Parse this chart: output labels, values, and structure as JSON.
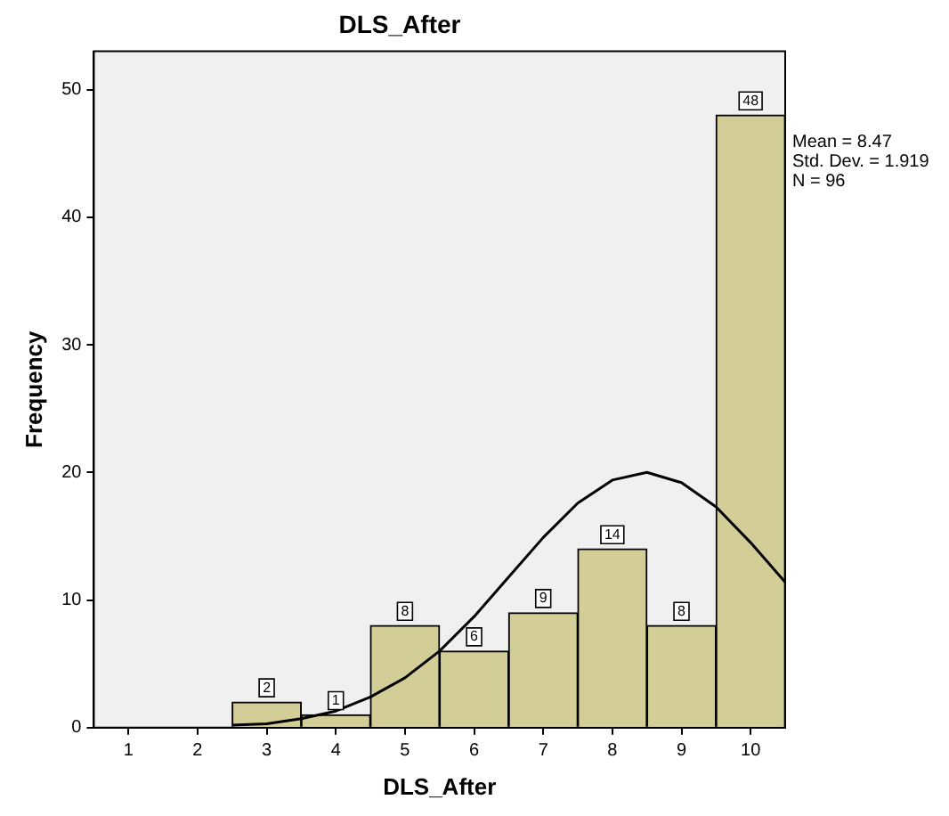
{
  "chart_data": {
    "type": "histogram",
    "title": "DLS_After",
    "xlabel": "DLS_After",
    "ylabel": "Frequency",
    "bins": [
      0.5,
      1.5,
      2.5,
      3.5,
      4.5,
      5.5,
      6.5,
      7.5,
      8.5,
      9.5,
      10.5
    ],
    "xlim": [
      0.5,
      10.5
    ],
    "xticks": [
      1,
      2,
      3,
      4,
      5,
      6,
      7,
      8,
      9,
      10
    ],
    "ylim": [
      0,
      53
    ],
    "yticks": [
      0,
      10,
      20,
      30,
      40,
      50
    ],
    "grid": false,
    "legend": false,
    "annotations": [
      "Mean = 8.47",
      "Std. Dev. = 1.919",
      "N = 96"
    ],
    "series": [
      {
        "color": "#d3ce97",
        "values": [
          0,
          0,
          2,
          1,
          8,
          6,
          9,
          14,
          8,
          48
        ],
        "value_labels": [
          null,
          null,
          "2",
          "1",
          "8",
          "6",
          "9",
          "14",
          "8",
          "48"
        ]
      },
      {
        "type": "line",
        "color": "#000000",
        "marker": "none",
        "x": [
          2.5,
          3,
          3.5,
          4,
          4.5,
          5,
          5.5,
          6,
          6.5,
          7,
          7.5,
          8,
          8.5,
          9,
          9.5,
          10,
          10.5
        ],
        "values": [
          0.2,
          0.3,
          0.7,
          1.3,
          2.4,
          3.9,
          6,
          8.7,
          11.8,
          14.9,
          17.6,
          19.4,
          20,
          19.2,
          17.3,
          14.5,
          11.4
        ]
      }
    ]
  }
}
